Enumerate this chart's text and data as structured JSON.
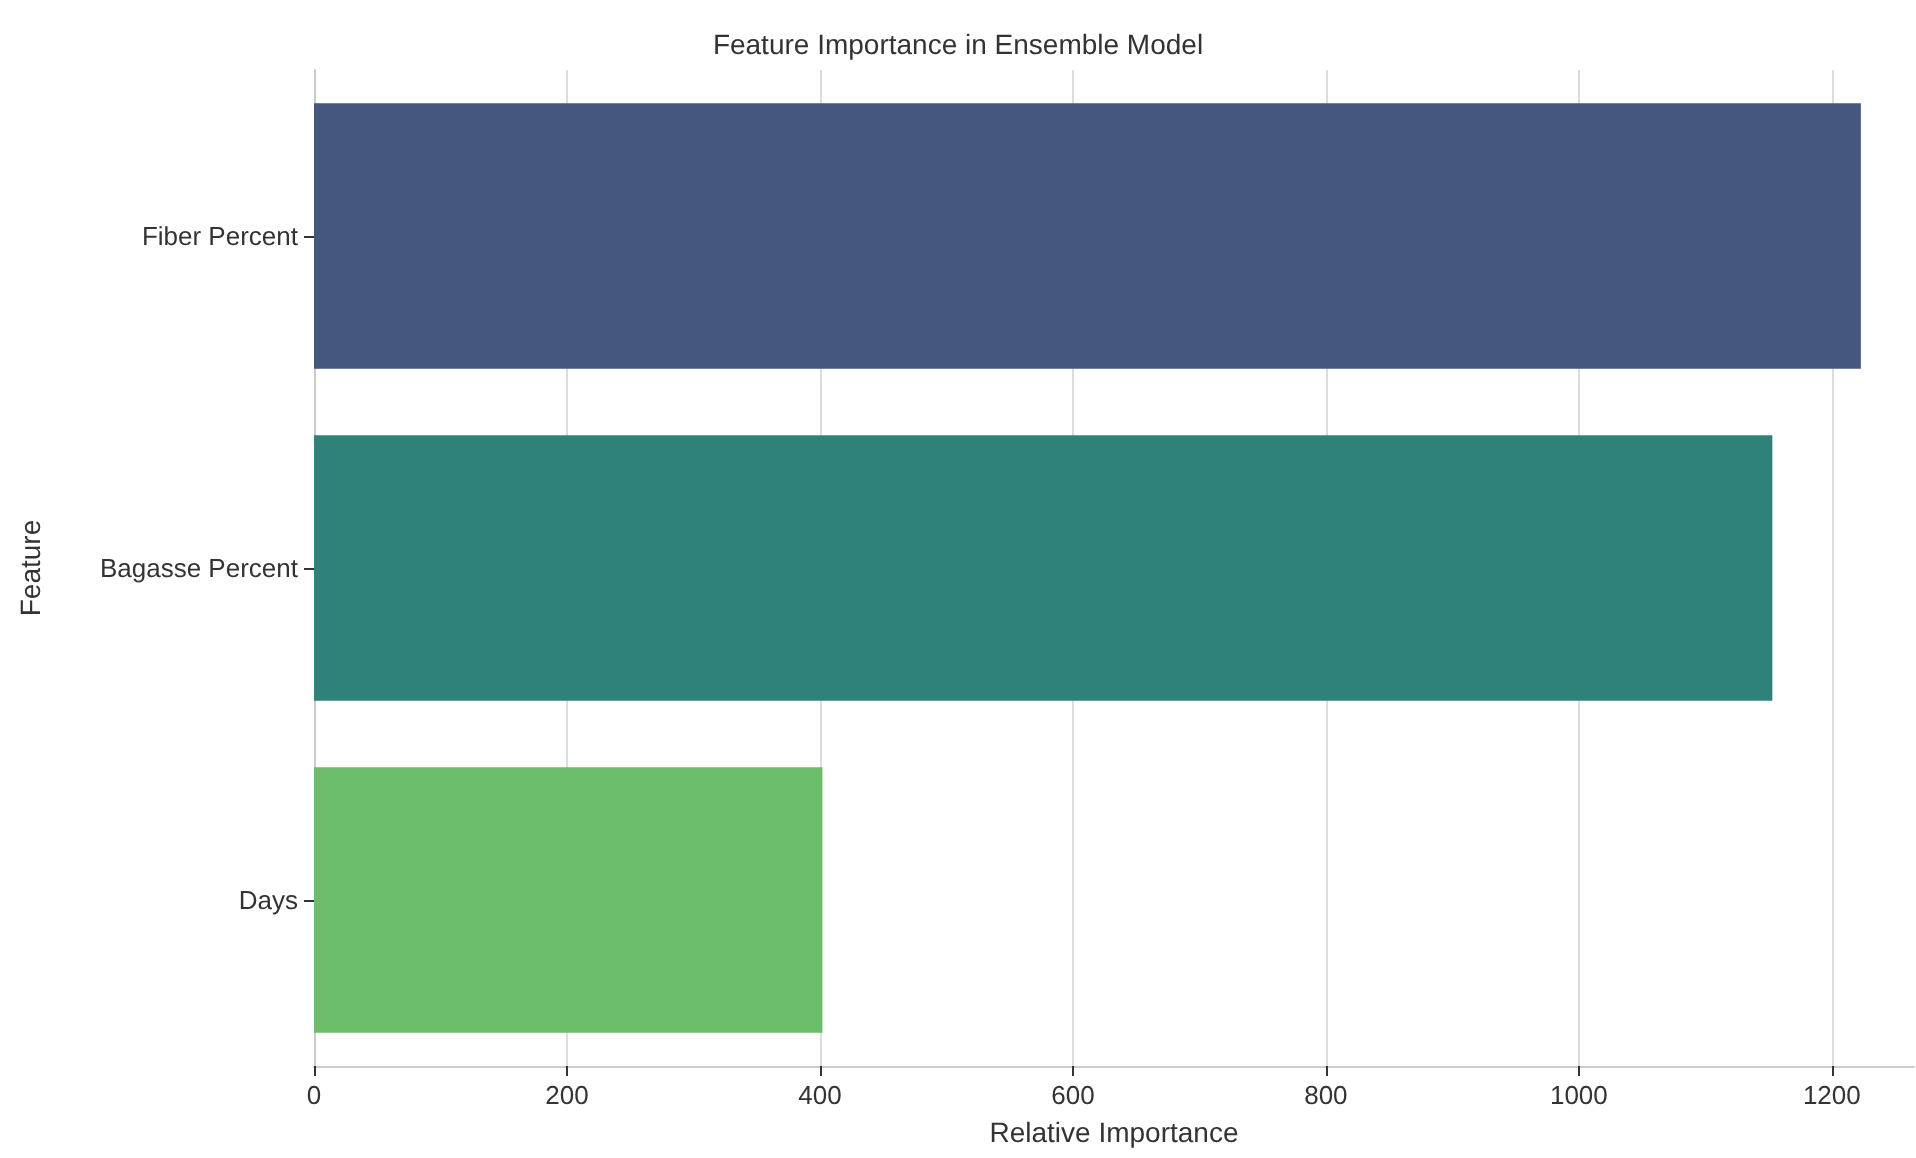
{
  "chart_data": {
    "type": "bar",
    "orientation": "horizontal",
    "title": "Feature Importance in Ensemble Model",
    "xlabel": "Relative Importance",
    "ylabel": "Feature",
    "categories": [
      "Fiber Percent",
      "Bagasse Percent",
      "Days"
    ],
    "values": [
      1223,
      1153,
      402
    ],
    "colors": [
      "#46577f",
      "#2e8279",
      "#6bbd6a"
    ],
    "xlim": [
      0,
      1265
    ],
    "xticks": [
      0,
      200,
      400,
      600,
      800,
      1000,
      1200
    ],
    "grid": "x"
  }
}
